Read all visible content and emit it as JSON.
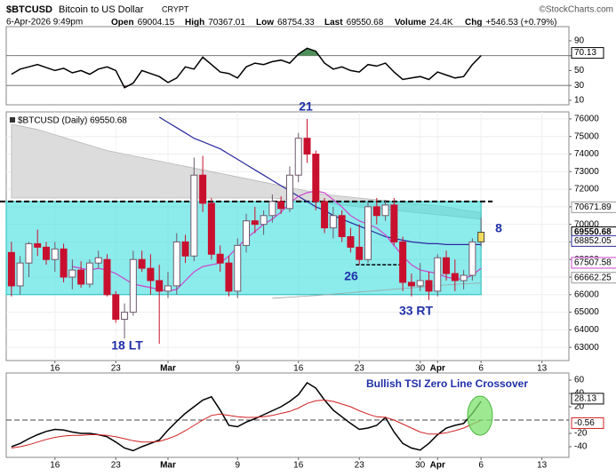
{
  "header": {
    "symbol": "$BTCUSD",
    "name": "Bitcoin to US Dollar",
    "exchange": "CRYPT",
    "credit": "©StockCharts.com",
    "datetime": "6-Apr-2026 9:49pm",
    "stats": [
      {
        "label": "Open",
        "value": "69004.15"
      },
      {
        "label": "High",
        "value": "70367.01"
      },
      {
        "label": "Low",
        "value": "68754.33"
      },
      {
        "label": "Last",
        "value": "69550.68"
      },
      {
        "label": "Volume",
        "value": "24.4K"
      },
      {
        "label": "Chg",
        "value": "+546.53 (+0.79%)"
      }
    ]
  },
  "chart_data": [
    {
      "type": "line",
      "xlim": [
        -0.6,
        64.1
      ],
      "ylim": [
        4,
        109
      ],
      "yticks": [
        90,
        70,
        50,
        30,
        10
      ],
      "hlines": [
        70,
        30
      ],
      "overbought_color": "#4f8f5a",
      "oversold_color": "#b0607a",
      "series": [
        {
          "color": "#000000",
          "values": [
            45,
            52,
            55,
            58,
            54,
            50,
            53,
            47,
            50,
            45,
            52,
            55,
            50,
            27,
            33,
            50,
            46,
            42,
            34,
            40,
            55,
            52,
            68,
            58,
            48,
            46,
            40,
            55,
            60,
            58,
            62,
            64,
            60,
            72,
            80,
            76,
            60,
            52,
            55,
            50,
            48,
            58,
            56,
            60,
            48,
            38,
            40,
            42,
            38,
            48,
            44,
            40,
            42,
            58,
            70.13
          ]
        }
      ]
    },
    {
      "type": "candlestick",
      "legend": "$BTCUSD (Daily) 69550.68",
      "xlim": [
        -0.6,
        64.1
      ],
      "ylim": [
        62250,
        76400
      ],
      "yticks": [
        76000,
        75000,
        74000,
        73000,
        72000,
        71000,
        70000,
        69000,
        68000,
        67000,
        66000,
        65000,
        64000,
        63000
      ],
      "xticks": [
        {
          "value": 5,
          "label": "16"
        },
        {
          "value": 12,
          "label": "23"
        },
        {
          "value": 18,
          "label": "Mar"
        },
        {
          "value": 26,
          "label": "9"
        },
        {
          "value": 33,
          "label": "16"
        },
        {
          "value": 40,
          "label": "23"
        },
        {
          "value": 47,
          "label": "30"
        },
        {
          "value": 49,
          "label": "Apr"
        },
        {
          "value": 54,
          "label": "6"
        },
        {
          "value": 61,
          "label": "13"
        }
      ],
      "grid": true,
      "rising_color": "#6e5a6c",
      "falling_color": "#c8102e",
      "last_color": "#f2dc5d",
      "open": [
        68400,
        66500,
        67800,
        68900,
        68700,
        68000,
        68600,
        67000,
        67400,
        66600,
        67800,
        68000,
        66000,
        64600,
        65000,
        68000,
        67500,
        66800,
        66200,
        66500,
        69000,
        68200,
        72800,
        71200,
        68300,
        67800,
        66200,
        68800,
        70200,
        70000,
        70500,
        71300,
        70900,
        72800,
        74900,
        74000,
        71300,
        69800,
        70500,
        69300,
        68700,
        68000,
        71000,
        70500,
        71100,
        69000,
        66700,
        66500,
        66800,
        66200,
        68100,
        67200,
        66800,
        67100,
        69004.15
      ],
      "high": [
        69000,
        68200,
        69000,
        69700,
        69000,
        69000,
        68900,
        68000,
        67900,
        68000,
        68500,
        68300,
        66200,
        65500,
        68500,
        68500,
        68300,
        67700,
        67300,
        69500,
        69400,
        73800,
        73900,
        71500,
        68800,
        68200,
        69200,
        70600,
        71000,
        70800,
        71700,
        71600,
        73300,
        75200,
        76000,
        74200,
        71500,
        71000,
        70800,
        69800,
        70000,
        71300,
        71500,
        71400,
        71500,
        69300,
        67200,
        67800,
        67300,
        68300,
        68500,
        68000,
        67400,
        69200,
        70367.01
      ],
      "low": [
        65900,
        66000,
        67000,
        68200,
        67700,
        67300,
        66700,
        66300,
        66400,
        66400,
        67500,
        65900,
        64400,
        63500,
        64800,
        67300,
        66000,
        63200,
        65800,
        66000,
        67800,
        67900,
        70700,
        68000,
        67300,
        65900,
        65800,
        68400,
        69500,
        69400,
        70100,
        70600,
        70700,
        72400,
        73500,
        70800,
        69500,
        69200,
        69000,
        68400,
        67700,
        67800,
        70000,
        70200,
        68800,
        66200,
        65900,
        66200,
        65700,
        65900,
        66800,
        66200,
        66300,
        66800,
        68754.33
      ],
      "close": [
        66500,
        67800,
        68900,
        68700,
        68000,
        68600,
        67000,
        67400,
        66600,
        67800,
        68100,
        66000,
        64600,
        65000,
        68000,
        67500,
        66800,
        66200,
        66500,
        69000,
        68200,
        72800,
        71200,
        68300,
        67800,
        66200,
        68800,
        70200,
        70000,
        70500,
        71300,
        70900,
        72800,
        74900,
        74000,
        71300,
        69800,
        70500,
        69300,
        68700,
        68000,
        71000,
        70500,
        71100,
        69000,
        66700,
        66500,
        66800,
        66200,
        68100,
        67200,
        66800,
        67100,
        69000,
        69550.68
      ],
      "cloud": {
        "fill": "#dcdcdc",
        "stroke": "#b8b8b8",
        "upper": [
          75700,
          75600,
          75500,
          75400,
          75250,
          75100,
          74950,
          74800,
          74650,
          74500,
          74350,
          74200,
          74100,
          74000,
          73900,
          73800,
          73700,
          73600,
          73500,
          73400,
          73300,
          73200,
          73100,
          73000,
          72900,
          72800,
          72700,
          72600,
          72500,
          72400,
          72300,
          72200,
          72100,
          72000,
          71900,
          71800,
          71700,
          71650,
          71600,
          71550,
          71500,
          71450,
          71400,
          71350,
          71300,
          71250,
          71200,
          71150,
          71100,
          71050,
          71000,
          70900,
          70800,
          70750,
          70671.89
        ],
        "lower": [
          71500,
          71500,
          71500,
          71500,
          71500,
          71500,
          71500,
          71500,
          71500,
          71500,
          71500,
          71500,
          71500,
          71500,
          71500,
          71500,
          71500,
          71500,
          71500,
          71500,
          71500,
          71500,
          71500,
          71500,
          71500,
          71500,
          71500,
          71500,
          71500,
          71500,
          71500,
          71450,
          71400,
          71350,
          71300,
          71250,
          71200,
          71150,
          71100,
          71050,
          71000,
          70950,
          70900,
          70850,
          70800,
          70750,
          70700,
          70650,
          70600,
          70550,
          70500,
          70450,
          70400,
          70350,
          70300
        ]
      },
      "box": {
        "top": 71300,
        "bottom": 66000,
        "fill": "#40dede",
        "stroke": "#22bcbc"
      },
      "resistance": 71300,
      "short_level": {
        "value": 67700,
        "from": 40,
        "to": 45
      },
      "series": [
        {
          "color": "#2a2a9e",
          "values": [
            null,
            null,
            null,
            null,
            null,
            null,
            null,
            null,
            null,
            null,
            null,
            null,
            null,
            null,
            null,
            null,
            null,
            76100,
            75800,
            75500,
            75200,
            74900,
            74700,
            74500,
            74300,
            74000,
            73700,
            73400,
            73100,
            72800,
            72500,
            72200,
            71900,
            71600,
            71300,
            71000,
            70800,
            70500,
            70300,
            70100,
            69900,
            69700,
            69500,
            69300,
            69200,
            69100,
            69000,
            68950,
            68900,
            68900,
            68850,
            68850,
            68850,
            68850,
            68852.05
          ]
        },
        {
          "color": "#cc44cc",
          "values": [
            null,
            null,
            null,
            null,
            null,
            null,
            null,
            67600,
            67500,
            67400,
            67500,
            67400,
            67200,
            66900,
            66600,
            66500,
            66400,
            66300,
            66200,
            66300,
            66800,
            67300,
            67600,
            67700,
            67800,
            68200,
            68700,
            69200,
            69600,
            70000,
            70300,
            70700,
            71200,
            71600,
            71800,
            71900,
            71800,
            71400,
            71000,
            70500,
            70200,
            70000,
            69800,
            69400,
            68800,
            68200,
            67700,
            67400,
            67300,
            67200,
            67000,
            66900,
            66900,
            67100,
            67507.58
          ]
        },
        {
          "color": "#9aa6a6",
          "values": [
            null,
            null,
            null,
            null,
            null,
            null,
            null,
            null,
            null,
            null,
            null,
            null,
            null,
            null,
            null,
            null,
            null,
            null,
            null,
            null,
            null,
            null,
            null,
            null,
            null,
            null,
            null,
            null,
            null,
            null,
            65800,
            65830,
            65860,
            65890,
            65920,
            65950,
            65990,
            66030,
            66070,
            66110,
            66150,
            66190,
            66230,
            66270,
            66310,
            66350,
            66390,
            66430,
            66470,
            66510,
            66550,
            66590,
            66620,
            66640,
            66662.25
          ]
        }
      ],
      "annotations": [
        "21",
        "18 LT",
        "26",
        "33 RT",
        "8"
      ]
    },
    {
      "type": "line",
      "xlim": [
        -0.6,
        64.1
      ],
      "ylim": [
        -56,
        70.7
      ],
      "yticks": [
        60,
        40,
        20,
        -20,
        -40
      ],
      "hlines": [
        0
      ],
      "xticks": [
        {
          "value": 5,
          "label": "16"
        },
        {
          "value": 12,
          "label": "23"
        },
        {
          "value": 18,
          "label": "Mar"
        },
        {
          "value": 26,
          "label": "9"
        },
        {
          "value": 33,
          "label": "16"
        },
        {
          "value": 40,
          "label": "23"
        },
        {
          "value": 47,
          "label": "30"
        },
        {
          "value": 49,
          "label": "Apr"
        },
        {
          "value": 54,
          "label": "6"
        },
        {
          "value": 61,
          "label": "13"
        }
      ],
      "annotation": "Bullish TSI Zero Line Crossover",
      "series": [
        {
          "color": "#000000",
          "values": [
            -40,
            -35,
            -28,
            -22,
            -17,
            -14,
            -15,
            -18,
            -20,
            -20,
            -22,
            -25,
            -33,
            -42,
            -46,
            -40,
            -35,
            -30,
            -15,
            -2,
            10,
            20,
            30,
            35,
            15,
            -8,
            -10,
            -3,
            2,
            8,
            14,
            20,
            28,
            38,
            56,
            48,
            30,
            15,
            5,
            -5,
            -14,
            -12,
            -8,
            4,
            -18,
            -35,
            -42,
            -45,
            -35,
            -22,
            -12,
            -8,
            -5,
            10,
            28.13
          ]
        },
        {
          "color": "#d02020",
          "values": [
            -42,
            -40,
            -37,
            -33,
            -29,
            -26,
            -24,
            -23,
            -23,
            -22,
            -22,
            -23,
            -25,
            -28,
            -31,
            -33,
            -33,
            -32,
            -28,
            -23,
            -16,
            -8,
            0,
            7,
            9,
            7,
            5,
            4,
            4,
            5,
            7,
            10,
            13,
            18,
            25,
            29,
            30,
            28,
            24,
            20,
            14,
            9,
            5,
            4,
            0,
            -6,
            -12,
            -18,
            -21,
            -21,
            -19,
            -16,
            -12,
            -6,
            -0.56
          ]
        }
      ]
    }
  ]
}
